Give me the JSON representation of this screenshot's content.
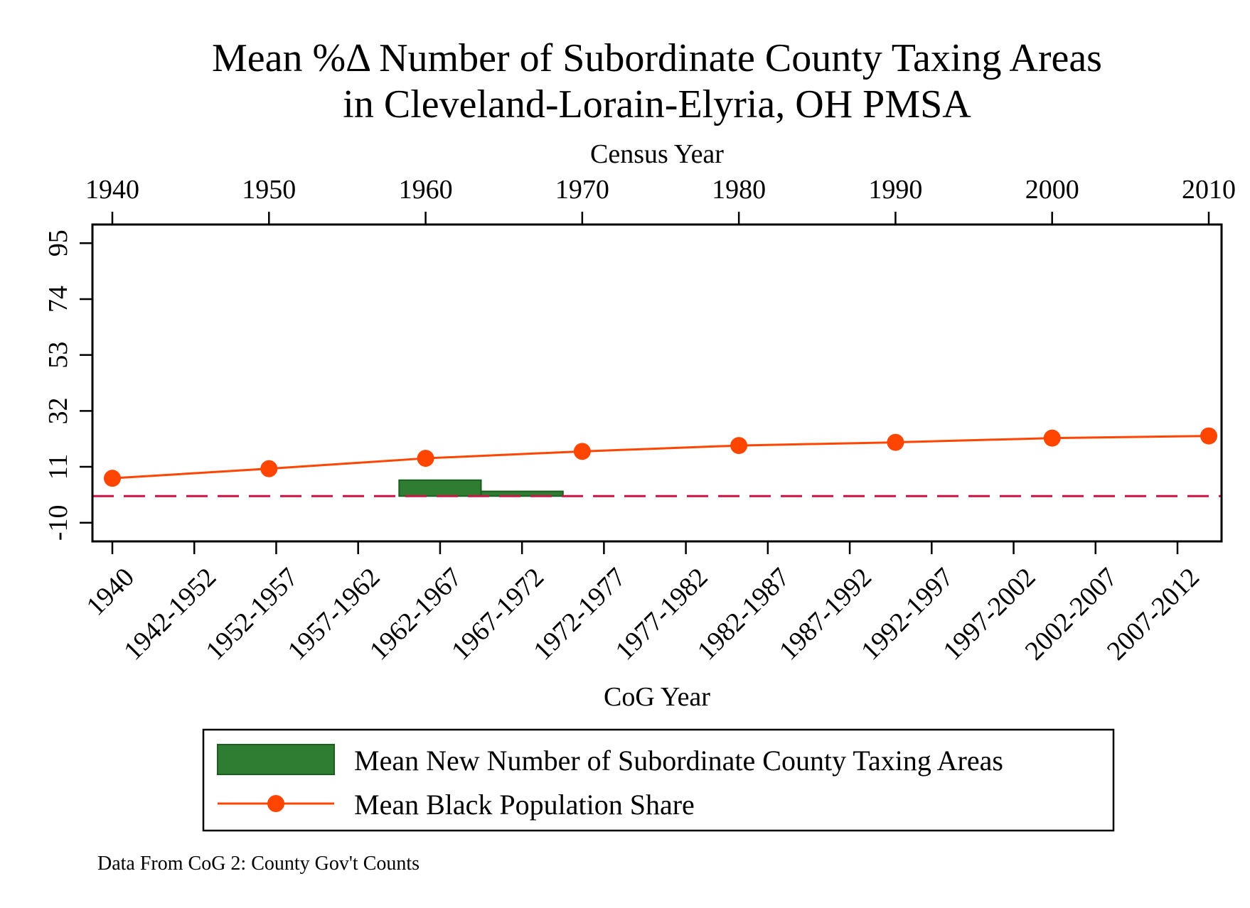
{
  "chart_data": {
    "type": "bar",
    "title": [
      "Mean %Δ Number of Subordinate County Taxing Areas",
      "in Cleveland-Lorain-Elyria, OH PMSA"
    ],
    "top_axis": {
      "label": "Census Year",
      "ticks": [
        "1940",
        "1950",
        "1960",
        "1970",
        "1980",
        "1990",
        "2000",
        "2010"
      ]
    },
    "bottom_axis": {
      "label": "CoG Year",
      "categories": [
        "1940",
        "1942-1952",
        "1952-1957",
        "1957-1962",
        "1962-1967",
        "1967-1972",
        "1972-1977",
        "1977-1982",
        "1982-1987",
        "1987-1992",
        "1992-1997",
        "1997-2002",
        "2002-2007",
        "2007-2012"
      ]
    },
    "y_axis": {
      "ticks": [
        "-10",
        "11",
        "32",
        "53",
        "74",
        "95"
      ],
      "ylim": [
        -17,
        102
      ]
    },
    "bars": {
      "name": "Mean New Number of Subordinate County Taxing Areas",
      "color": "#2e7d32",
      "edge_color": "#1b5e20",
      "values": [
        {
          "category": "1962-1967",
          "value": 6
        },
        {
          "category": "1967-1972",
          "value": 1.8
        }
      ]
    },
    "line": {
      "name": "Mean Black Population Share",
      "color": "#ff4500",
      "x": [
        1940,
        1950,
        1960,
        1970,
        1980,
        1990,
        2000,
        2010
      ],
      "y": [
        6.7,
        10.3,
        14.2,
        16.8,
        19,
        20.2,
        21.8,
        22.6
      ]
    },
    "reference_line": {
      "y": 0,
      "color": "#cc1447",
      "style": "dashed"
    },
    "legend": {
      "placement": "bottom"
    },
    "grid": false,
    "note": "Data From CoG 2: County Gov't Counts"
  }
}
